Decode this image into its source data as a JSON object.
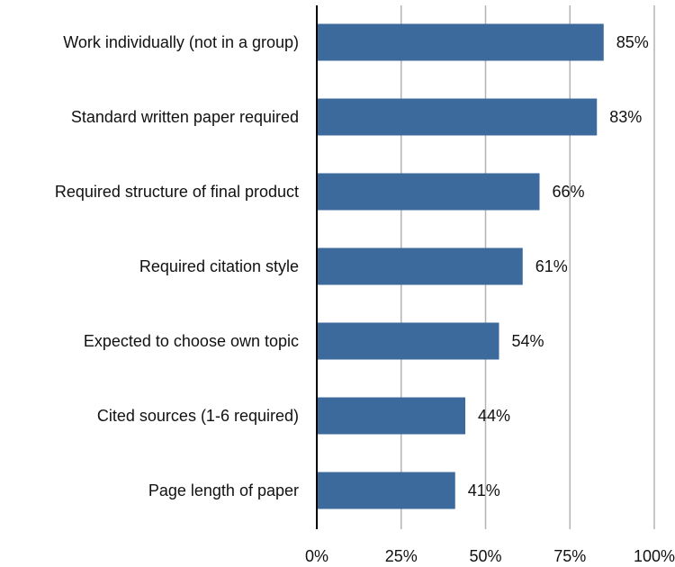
{
  "chart_data": {
    "type": "bar",
    "orientation": "horizontal",
    "title": "",
    "xlabel": "",
    "ylabel": "",
    "categories": [
      "Work individually (not in a group)",
      "Standard written paper required",
      "Required structure of final product",
      "Required citation style",
      "Expected to choose own topic",
      "Cited sources (1-6 required)",
      "Page length of paper"
    ],
    "values": [
      85,
      83,
      66,
      61,
      54,
      44,
      41
    ],
    "value_labels": [
      "85%",
      "83%",
      "66%",
      "61%",
      "54%",
      "44%",
      "41%"
    ],
    "xlim": [
      0,
      100
    ],
    "x_ticks": [
      0,
      25,
      50,
      75,
      100
    ],
    "x_tick_labels": [
      "0%",
      "25%",
      "50%",
      "75%",
      "100%"
    ],
    "grid": "vertical",
    "legend": "none",
    "bar_color": "#3d6a9c",
    "grid_color": "#b3b3b3",
    "axis_color": "#000000"
  }
}
